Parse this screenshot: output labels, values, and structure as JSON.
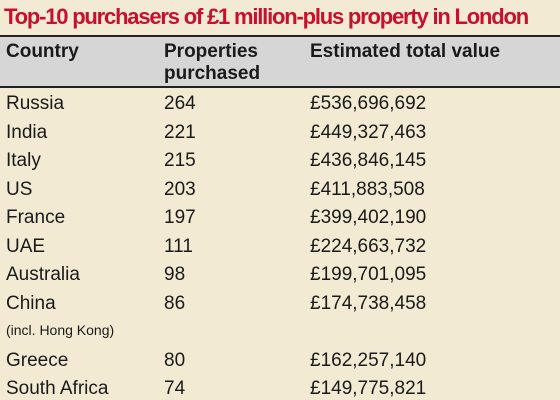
{
  "title": "Top-10 purchasers of £1 million-plus property in London",
  "chart_data": {
    "type": "table",
    "title": "Top-10 purchasers of £1 million-plus property in London",
    "columns": [
      "Country",
      "Properties\npurchased",
      "Estimated total value"
    ],
    "rows": [
      {
        "country": "Russia",
        "note": "",
        "properties": "264",
        "value": "£536,696,692"
      },
      {
        "country": "India",
        "note": "",
        "properties": "221",
        "value": "£449,327,463"
      },
      {
        "country": "Italy",
        "note": "",
        "properties": "215",
        "value": "£436,846,145"
      },
      {
        "country": "US",
        "note": "",
        "properties": "203",
        "value": "£411,883,508"
      },
      {
        "country": "France",
        "note": "",
        "properties": "197",
        "value": "£399,402,190"
      },
      {
        "country": "UAE",
        "note": "",
        "properties": "111",
        "value": "£224,663,732"
      },
      {
        "country": "Australia",
        "note": "",
        "properties": "98",
        "value": "£199,701,095"
      },
      {
        "country": "China",
        "note": "(incl. Hong Kong)",
        "properties": "86",
        "value": "£174,738,458"
      },
      {
        "country": "Greece",
        "note": "",
        "properties": "80",
        "value": "£162,257,140"
      },
      {
        "country": "South Africa",
        "note": "",
        "properties": "74",
        "value": "£149,775,821"
      }
    ]
  },
  "colors": {
    "background": "#f2ead2",
    "title": "#c8102e",
    "header_background": "#d6d6d6",
    "text": "#1a1a1a"
  }
}
